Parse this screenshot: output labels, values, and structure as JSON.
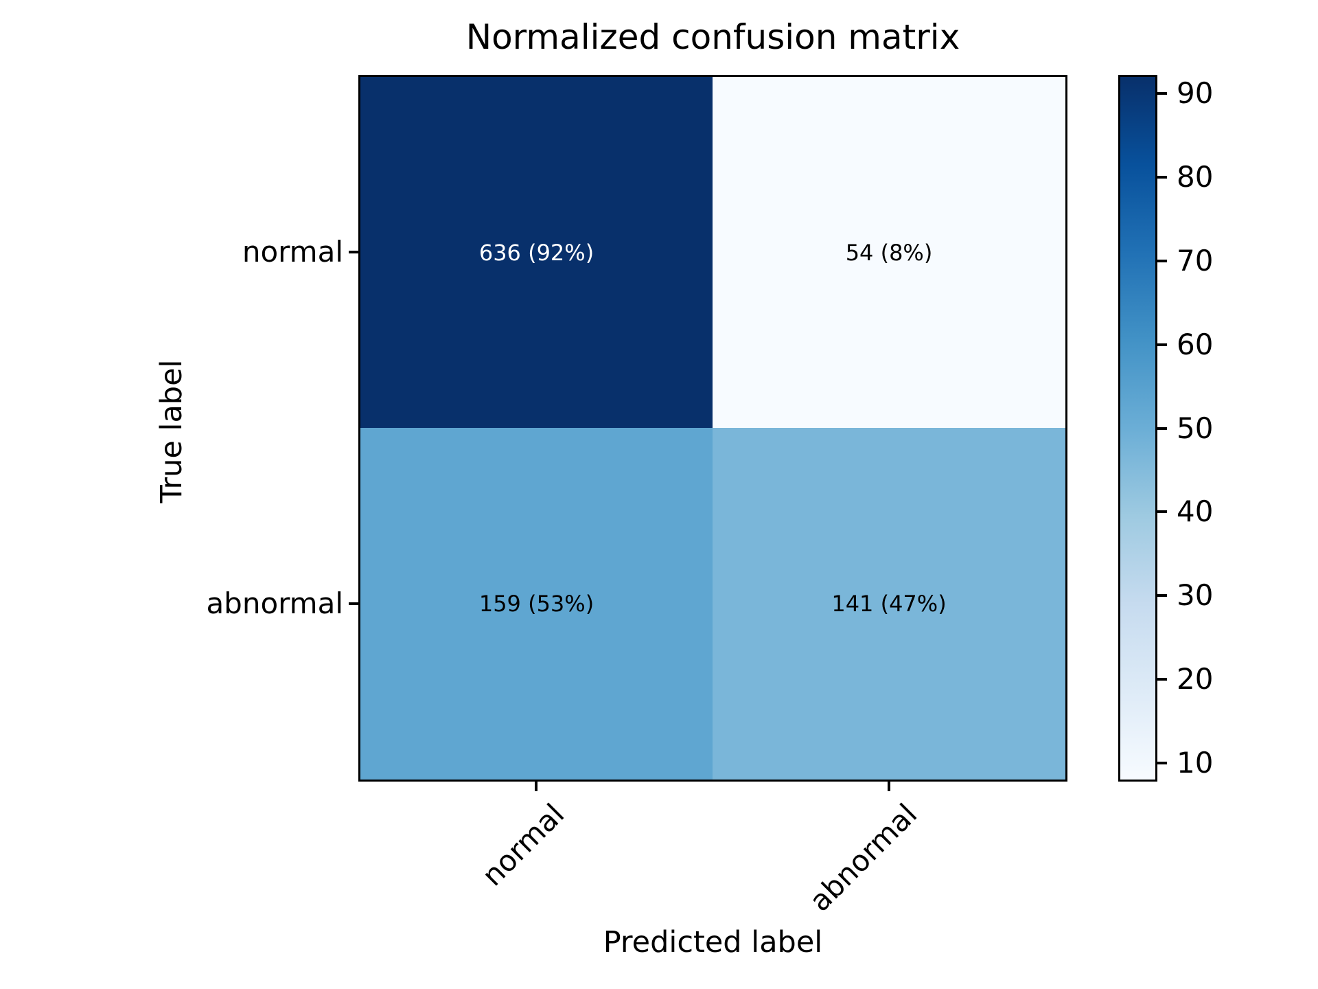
{
  "chart_data": {
    "type": "heatmap",
    "title": "Normalized confusion matrix",
    "xlabel": "Predicted label",
    "ylabel": "True label",
    "x_categories": [
      "normal",
      "abnormal"
    ],
    "y_categories": [
      "normal",
      "abnormal"
    ],
    "matrix_counts": [
      [
        636,
        54
      ],
      [
        159,
        141
      ]
    ],
    "matrix_percents": [
      [
        92,
        8
      ],
      [
        53,
        47
      ]
    ],
    "cells": [
      {
        "row": 0,
        "col": 0,
        "label": "636 (92%)",
        "color": "#08306b",
        "text_color": "#ffffff"
      },
      {
        "row": 0,
        "col": 1,
        "label": "54 (8%)",
        "color": "#f7fbff",
        "text_color": "#000000"
      },
      {
        "row": 1,
        "col": 0,
        "label": "159 (53%)",
        "color": "#5fa6d1",
        "text_color": "#000000"
      },
      {
        "row": 1,
        "col": 1,
        "label": "141 (47%)",
        "color": "#7ab6d9",
        "text_color": "#000000"
      }
    ],
    "colorbar": {
      "colormap": "Blues",
      "vmin": 8,
      "vmax": 92,
      "ticks": [
        90,
        80,
        70,
        60,
        50,
        40,
        30,
        20,
        10
      ],
      "gradient_stops": [
        "#f7fbff",
        "#deebf7",
        "#c6dbef",
        "#9ecae1",
        "#6baed6",
        "#4292c6",
        "#2171b5",
        "#08519c",
        "#08306b"
      ]
    },
    "grid": false,
    "legend_position": null
  }
}
